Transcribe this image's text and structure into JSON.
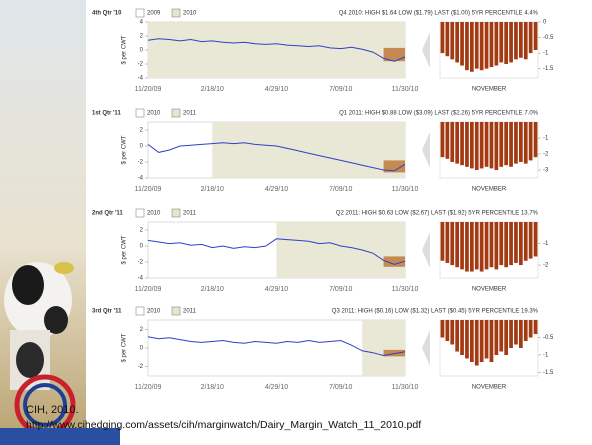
{
  "chart_data": [
    {
      "type": "line",
      "title": "4th Qtr '10",
      "legend": [
        "2009",
        "2010"
      ],
      "subtitle": "Q4 2010:   HIGH $1.64   LOW ($1.79)   LAST ($1.00)   5YR PERCENTILE 4.4%",
      "ylabel": "$ per CWT",
      "color": "#3040c8",
      "categories": [
        "11/20/09",
        null,
        null,
        null,
        null,
        null,
        "2/18/10",
        null,
        null,
        null,
        null,
        null,
        "4/29/10",
        null,
        null,
        null,
        null,
        null,
        "7/09/10",
        null,
        null,
        null,
        null,
        null,
        "11/30/10"
      ],
      "values": [
        1.4,
        1.6,
        1.5,
        1.3,
        1.5,
        1.2,
        1.3,
        1.1,
        1.0,
        1.1,
        0.9,
        0.8,
        0.9,
        0.7,
        0.6,
        0.5,
        0.6,
        0.3,
        0.2,
        0.4,
        0.1,
        -0.3,
        -1.2,
        -1.6,
        -1.0
      ],
      "ylim": [
        -4,
        4
      ],
      "yticks": [
        4,
        2,
        0,
        -2,
        -4
      ],
      "highlight_start": 0,
      "box": {
        "from": 22,
        "ylim": [
          -1.6,
          0.3
        ]
      }
    },
    {
      "type": "bar",
      "xlabel": "NOVEMBER",
      "color": "#a33a12",
      "values": [
        -1.0,
        -1.1,
        -1.2,
        -1.3,
        -1.4,
        -1.55,
        -1.6,
        -1.5,
        -1.55,
        -1.5,
        -1.45,
        -1.4,
        -1.3,
        -1.35,
        -1.3,
        -1.2,
        -1.15,
        -1.2,
        -1.0,
        -0.9
      ],
      "ylim": [
        -1.8,
        0
      ],
      "yticks": [
        0,
        -0.5,
        -1,
        -1.5
      ]
    },
    {
      "type": "line",
      "title": "1st Qtr '11",
      "legend": [
        "2010",
        "2011"
      ],
      "subtitle": "Q1 2011:   HIGH $0.88   LOW ($3.09)   LAST ($2.26)   5YR PERCENTILE 7.0%",
      "ylabel": "$ per CWT",
      "color": "#3040c8",
      "categories": [
        "11/20/09",
        null,
        null,
        null,
        null,
        null,
        "2/18/10",
        null,
        null,
        null,
        null,
        null,
        "4/29/10",
        null,
        null,
        null,
        null,
        null,
        "7/09/10",
        null,
        null,
        null,
        null,
        null,
        "11/30/10"
      ],
      "values": [
        0.2,
        -0.8,
        -0.5,
        0.0,
        0.1,
        0.2,
        0.3,
        0.4,
        0.3,
        0.4,
        0.2,
        0.1,
        0.0,
        -0.3,
        -0.6,
        -0.9,
        -1.2,
        -1.5,
        -1.8,
        -2.1,
        -2.4,
        -2.7,
        -3.0,
        -3.1,
        -2.3
      ],
      "ylim": [
        -4,
        3
      ],
      "yticks": [
        2,
        0,
        -2,
        -4
      ],
      "highlight_start": 6,
      "box": {
        "from": 22,
        "ylim": [
          -3.3,
          -1.8
        ]
      }
    },
    {
      "type": "bar",
      "xlabel": "NOVEMBER",
      "color": "#a33a12",
      "values": [
        -2.2,
        -2.3,
        -2.5,
        -2.6,
        -2.7,
        -2.8,
        -2.9,
        -3.0,
        -2.9,
        -2.8,
        -2.9,
        -3.0,
        -2.8,
        -2.7,
        -2.8,
        -2.6,
        -2.5,
        -2.6,
        -2.4,
        -2.2
      ],
      "ylim": [
        -3.5,
        0
      ],
      "yticks": [
        -1,
        -2,
        -3
      ]
    },
    {
      "type": "line",
      "title": "2nd Qtr '11",
      "legend": [
        "2010",
        "2011"
      ],
      "subtitle": "Q2 2011:   HIGH $0.63   LOW ($2.67)   LAST ($1.92)   5YR PERCENTILE 13.7%",
      "ylabel": "$ per CWT",
      "color": "#3040c8",
      "categories": [
        "11/20/09",
        null,
        null,
        null,
        null,
        null,
        "2/18/10",
        null,
        null,
        null,
        null,
        null,
        "4/29/10",
        null,
        null,
        null,
        null,
        null,
        "7/09/10",
        null,
        null,
        null,
        null,
        null,
        "11/30/10"
      ],
      "values": [
        0.7,
        0.5,
        0.3,
        0.4,
        0.1,
        0.2,
        -0.2,
        0.0,
        -0.3,
        -0.1,
        -0.2,
        0.0,
        0.9,
        0.8,
        0.7,
        0.6,
        0.3,
        0.4,
        0.0,
        -0.2,
        -0.5,
        -0.9,
        -1.8,
        -2.3,
        -1.9
      ],
      "ylim": [
        -4,
        3
      ],
      "yticks": [
        2,
        0,
        -2,
        -4
      ],
      "highlight_start": 12,
      "box": {
        "from": 22,
        "ylim": [
          -2.6,
          -1.3
        ]
      }
    },
    {
      "type": "bar",
      "xlabel": "NOVEMBER",
      "color": "#a33a12",
      "values": [
        -1.8,
        -1.9,
        -2.0,
        -2.1,
        -2.2,
        -2.3,
        -2.3,
        -2.2,
        -2.3,
        -2.2,
        -2.1,
        -2.2,
        -2.0,
        -2.1,
        -2.0,
        -1.9,
        -2.0,
        -1.8,
        -1.7,
        -1.6
      ],
      "ylim": [
        -2.6,
        0
      ],
      "yticks": [
        -1,
        -2
      ]
    },
    {
      "type": "line",
      "title": "3rd Qtr '11",
      "legend": [
        "2010",
        "2011"
      ],
      "subtitle": "Q3 2011:   HIGH ($0.16)   LOW ($1.32)   LAST ($0.45)   5YR PERCENTILE 19.3%",
      "ylabel": "$ per CWT",
      "color": "#3040c8",
      "categories": [
        "11/20/09",
        null,
        null,
        null,
        null,
        null,
        "2/18/10",
        null,
        null,
        null,
        null,
        null,
        "4/29/10",
        null,
        null,
        null,
        null,
        null,
        "7/09/10",
        null,
        null,
        null,
        null,
        null,
        "11/30/10"
      ],
      "values": [
        1.2,
        1.0,
        1.1,
        0.9,
        0.7,
        0.6,
        0.7,
        0.8,
        0.6,
        0.5,
        0.7,
        0.6,
        0.5,
        0.7,
        0.6,
        0.8,
        0.6,
        0.7,
        0.8,
        0.3,
        -0.3,
        -0.5,
        -0.8,
        -0.6,
        -0.4
      ],
      "ylim": [
        -3,
        3
      ],
      "yticks": [
        2,
        0,
        -2
      ],
      "highlight_start": 20,
      "box": {
        "from": 22,
        "ylim": [
          -0.9,
          -0.2
        ]
      }
    },
    {
      "type": "bar",
      "xlabel": "NOVEMBER",
      "color": "#a33a12",
      "values": [
        -0.5,
        -0.6,
        -0.7,
        -0.9,
        -1.0,
        -1.1,
        -1.2,
        -1.3,
        -1.2,
        -1.1,
        -1.2,
        -1.0,
        -0.9,
        -1.0,
        -0.8,
        -0.7,
        -0.8,
        -0.6,
        -0.5,
        -0.4
      ],
      "ylim": [
        -1.6,
        0
      ],
      "yticks": [
        -0.5,
        -1,
        -1.5
      ]
    }
  ],
  "source": {
    "text": "CIH, 2010.",
    "url": "http://www.cihedging.com/assets/cih/marginwatch/Dairy_Margin_Watch_11_2010.pdf"
  }
}
